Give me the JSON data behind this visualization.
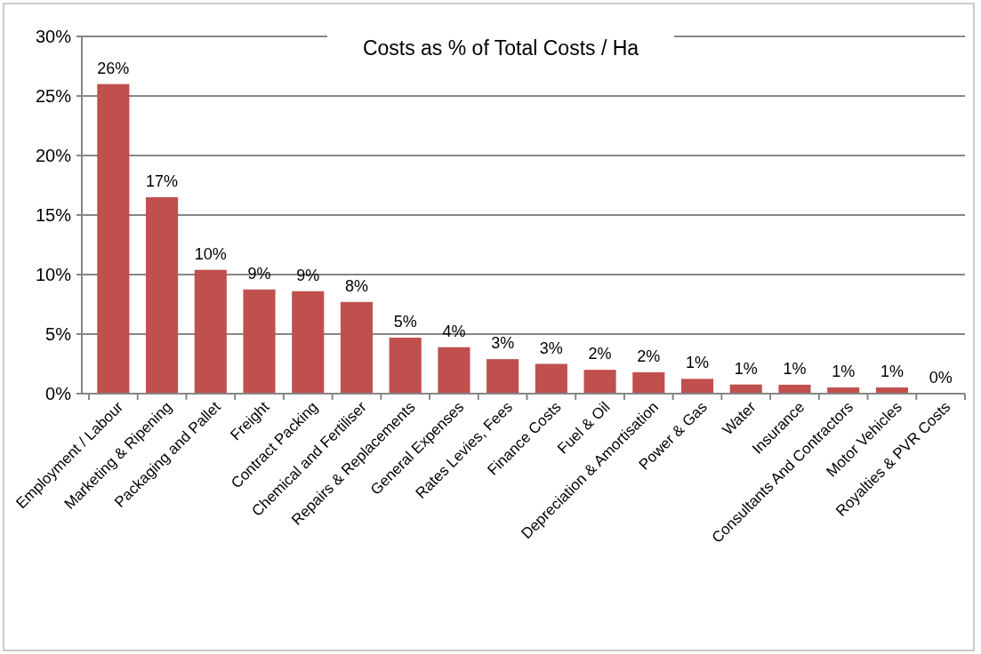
{
  "chart_data": {
    "type": "bar",
    "title": "Costs as % of Total Costs / Ha",
    "categories": [
      "Employment / Labour",
      "Marketing & Ripening",
      "Packaging and Pallet",
      "Freight",
      "Contract Packing",
      "Chemical and Fertiliser",
      "Repairs & Replacements",
      "General Expenses",
      "Rates Levies, Fees",
      "Finance Costs",
      "Fuel & Oil",
      "Depreciation & Amortisation",
      "Power & Gas",
      "Water",
      "Insurance",
      "Consultants And Contractors",
      "Motor Vehicles",
      "Royalties & PVR Costs"
    ],
    "values": [
      26.0,
      16.5,
      10.4,
      8.75,
      8.6,
      7.7,
      4.7,
      3.9,
      2.9,
      2.5,
      2.0,
      1.8,
      1.24,
      0.77,
      0.75,
      0.52,
      0.52,
      0
    ],
    "value_labels": [
      "26%",
      "17%",
      "10%",
      "9%",
      "9%",
      "8%",
      "5%",
      "4%",
      "3%",
      "3%",
      "2%",
      "2%",
      "1%",
      "1%",
      "1%",
      "1%",
      "1%",
      "0%"
    ],
    "color": "#c0504d",
    "ylim": [
      0,
      30
    ],
    "yticks": [
      {
        "value": 0,
        "label": "0%"
      },
      {
        "value": 5,
        "label": "5%"
      },
      {
        "value": 10,
        "label": "10%"
      },
      {
        "value": 15,
        "label": "15%"
      },
      {
        "value": 20,
        "label": "20%"
      },
      {
        "value": 25,
        "label": "25%"
      },
      {
        "value": 30,
        "label": "30%"
      }
    ],
    "grid": "y"
  }
}
